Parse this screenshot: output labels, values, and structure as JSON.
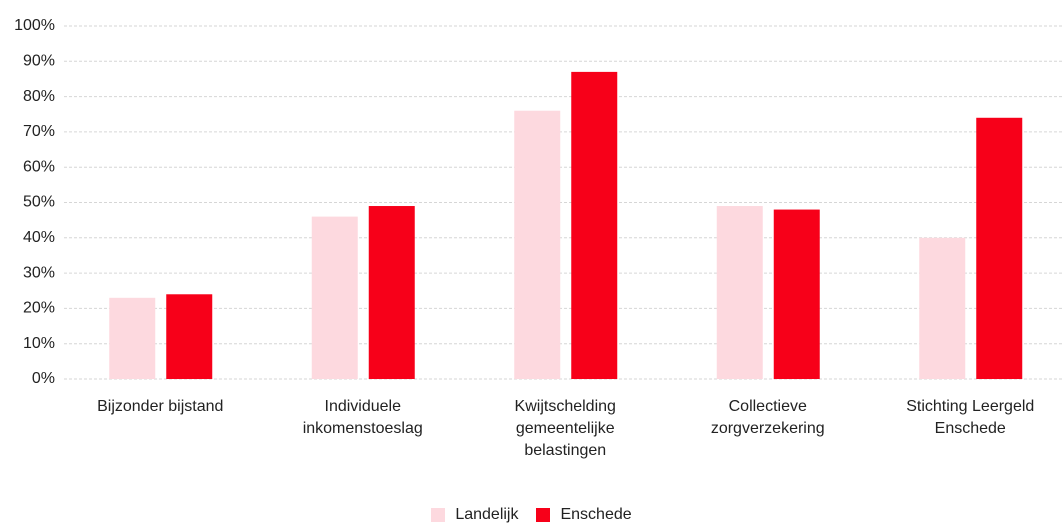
{
  "chart_data": {
    "type": "bar",
    "categories": [
      "Bijzonder bijstand",
      "Individuele\ninkomenstoeslag",
      "Kwijtschelding\ngemeentelijke\nbelastingen",
      "Collectieve\nzorgverzekering",
      "Stichting Leergeld\nEnschede"
    ],
    "series": [
      {
        "name": "Landelijk",
        "color": "#fdd9df",
        "values": [
          23,
          46,
          76,
          49,
          40
        ]
      },
      {
        "name": "Enschede",
        "color": "#f70019",
        "values": [
          24,
          49,
          87,
          48,
          74
        ]
      }
    ],
    "ylim": [
      0,
      100
    ],
    "yticks": [
      {
        "value": 0,
        "label": "0%"
      },
      {
        "value": 10,
        "label": "10%"
      },
      {
        "value": 20,
        "label": "20%"
      },
      {
        "value": 30,
        "label": "30%"
      },
      {
        "value": 40,
        "label": "40%"
      },
      {
        "value": 50,
        "label": "50%"
      },
      {
        "value": 60,
        "label": "60%"
      },
      {
        "value": 70,
        "label": "70%"
      },
      {
        "value": 80,
        "label": "80%"
      },
      {
        "value": 90,
        "label": "90%"
      },
      {
        "value": 100,
        "label": "100%"
      }
    ],
    "grid": true,
    "legend": "bottom"
  }
}
